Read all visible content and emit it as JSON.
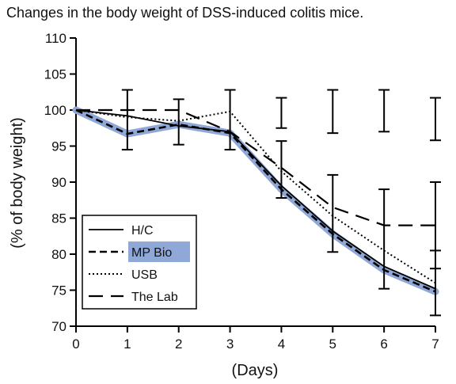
{
  "chart_data": {
    "type": "line",
    "title": "Changes in the body weight of DSS-induced colitis mice.",
    "xlabel": "(Days)",
    "ylabel": "(% of body weight)",
    "x": [
      0,
      1,
      2,
      3,
      4,
      5,
      6,
      7
    ],
    "xlim": [
      0,
      7
    ],
    "ylim": [
      70,
      110
    ],
    "xticks": [
      "0",
      "1",
      "2",
      "3",
      "4",
      "5",
      "6",
      "7"
    ],
    "yticks": [
      "70",
      "75",
      "80",
      "85",
      "90",
      "95",
      "100",
      "105",
      "110"
    ],
    "grid": false,
    "legend_position": "bottom-left",
    "highlight_color": "#8fa8d8",
    "series": [
      {
        "name": "H/C",
        "style": "solid",
        "values": [
          100,
          99.2,
          97.8,
          97.0,
          89.5,
          83.2,
          78.3,
          75.2
        ]
      },
      {
        "name": "MP Bio",
        "style": "short-dash-highlight",
        "values": [
          100,
          96.7,
          98.0,
          96.8,
          89.0,
          82.8,
          77.8,
          74.8
        ]
      },
      {
        "name": "USB",
        "style": "dotted",
        "values": [
          100,
          99.0,
          98.5,
          99.8,
          91.5,
          85.3,
          80.5,
          76.0
        ]
      },
      {
        "name": "The Lab",
        "style": "long-dash",
        "values": [
          100,
          100,
          100,
          97.0,
          92.0,
          86.5,
          84.0,
          84.0
        ]
      }
    ],
    "error_bars": [
      {
        "x": 1,
        "low": 94.5,
        "high": 102.8
      },
      {
        "x": 2,
        "low": 95.2,
        "high": 101.5
      },
      {
        "x": 3,
        "low": 94.5,
        "high": 102.8
      },
      {
        "x": 4,
        "low": 97.5,
        "high": 101.7
      },
      {
        "x": 4,
        "low": 87.8,
        "high": 95.7
      },
      {
        "x": 5,
        "low": 96.8,
        "high": 102.8
      },
      {
        "x": 5,
        "low": 80.3,
        "high": 91.0
      },
      {
        "x": 6,
        "low": 97.0,
        "high": 102.8
      },
      {
        "x": 6,
        "low": 75.2,
        "high": 89.0
      },
      {
        "x": 7,
        "low": 95.8,
        "high": 101.7
      },
      {
        "x": 7,
        "low": 78.0,
        "high": 90.0
      },
      {
        "x": 7,
        "low": 71.5,
        "high": 80.5
      }
    ]
  }
}
